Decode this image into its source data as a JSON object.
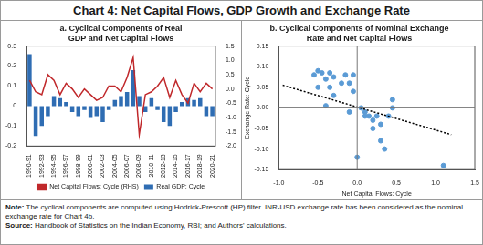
{
  "title": "Chart 4: Net Capital Flows, GDP Growth and Exchange Rate",
  "chart_data": [
    {
      "type": "bar",
      "title": [
        "a. Cyclical Components of Real",
        "GDP and Net Capital Flows"
      ],
      "categories": [
        "1990-91",
        null,
        "1992-93",
        null,
        "1994-95",
        null,
        "1996-97",
        null,
        "1998-99",
        null,
        "2000-01",
        null,
        "2002-03",
        null,
        "2004-05",
        null,
        "2006-07",
        null,
        "2008-09",
        null,
        "2010-11",
        null,
        "2012-13",
        null,
        "2014-15",
        null,
        "2016-17",
        null,
        "2018-19",
        null,
        "2020-21"
      ],
      "series": [
        {
          "name": "Real GDP: Cycle",
          "type": "bar",
          "color": "#2f6db3",
          "values": [
            0.26,
            -0.15,
            -0.1,
            -0.05,
            0.05,
            0.04,
            0.02,
            -0.03,
            -0.05,
            -0.02,
            -0.06,
            -0.05,
            -0.08,
            -0.02,
            0.03,
            0.05,
            0.07,
            0.18,
            0.05,
            -0.03,
            0.04,
            -0.02,
            -0.08,
            -0.1,
            -0.03,
            0.02,
            0.04,
            0.03,
            0.04,
            -0.05,
            -0.05
          ]
        },
        {
          "name": "Net Capital Flows: Cycle (RHS)",
          "type": "line",
          "axis": "y2",
          "color": "#c0282b",
          "values": [
            0.3,
            -0.1,
            -0.2,
            0.5,
            0.3,
            -0.2,
            0.2,
            0.0,
            -0.3,
            0.0,
            -0.2,
            -0.4,
            -0.3,
            0.1,
            0.1,
            -0.1,
            0.4,
            1.1,
            -1.6,
            -0.2,
            -0.1,
            0.1,
            0.4,
            -0.3,
            0.3,
            -0.2,
            -0.5,
            0.2,
            -0.1,
            0.2,
            0.0
          ]
        }
      ],
      "ylim": [
        -0.2,
        0.3
      ],
      "yticks": [
        -0.2,
        -0.1,
        0,
        0.1,
        0.2,
        0.3
      ],
      "y2lim": [
        -2.0,
        1.5
      ],
      "y2ticks": [
        {
          "value": -2.0,
          "label": "-2.0"
        },
        {
          "value": -1.5,
          "label": "-1.5"
        },
        {
          "value": -1.0,
          "label": "-1.0"
        },
        {
          "value": -0.5,
          "label": "-0.5"
        },
        {
          "value": 0,
          "label": "0.0"
        },
        {
          "value": 0.5,
          "label": "0.5"
        },
        {
          "value": 1.0,
          "label": "1.0"
        },
        {
          "value": 1.5,
          "label": "1.5"
        }
      ],
      "grid": false,
      "legend": "bottom"
    },
    {
      "type": "scatter",
      "title": [
        "b. Cyclical Components of Nominal Exchange",
        "Rate and Net Capital Flows"
      ],
      "x_label": "Net Capital Flows: Cycle",
      "y_label": "Exchange Rate: Cycle",
      "color": "#5b9bd5",
      "x": [
        -0.55,
        -0.5,
        -0.45,
        -0.4,
        -0.35,
        -0.3,
        -0.3,
        -0.35,
        -0.2,
        -0.15,
        -0.05,
        -0.1,
        -0.05,
        -0.4,
        -0.1,
        0.0,
        0.05,
        0.1,
        0.15,
        0.2,
        0.25,
        0.3,
        0.35,
        0.3,
        0.4,
        0.45,
        0.45,
        0.2,
        1.1,
        -0.5,
        0.1
      ],
      "values": [
        0.08,
        0.09,
        0.085,
        0.07,
        0.085,
        0.075,
        0.03,
        0.05,
        0.06,
        0.08,
        0.08,
        0.06,
        0.04,
        0.005,
        -0.01,
        -0.12,
        0.0,
        -0.02,
        -0.02,
        -0.03,
        -0.02,
        -0.04,
        -0.1,
        -0.08,
        -0.02,
        0.0,
        0.02,
        -0.05,
        -0.14,
        0.05,
        -0.01
      ],
      "trend_line": {
        "x": [
          -0.95,
          1.2
        ],
        "values": [
          0.055,
          -0.065
        ],
        "color": "#000000",
        "line_style": "dotted"
      },
      "xlim": [
        -1.0,
        1.5
      ],
      "xticks": [
        {
          "value": -1.0,
          "label": "-1.0"
        },
        {
          "value": -0.5,
          "label": "-0.5"
        },
        {
          "value": 0,
          "label": "0.0"
        },
        {
          "value": 0.5,
          "label": "0.5"
        },
        {
          "value": 1.0,
          "label": "1.0"
        },
        {
          "value": 1.5,
          "label": "1.5"
        }
      ],
      "ylim": [
        -0.15,
        0.15
      ],
      "yticks": [
        -0.15,
        {
          "value": -0.1,
          "label": "-0.10"
        },
        -0.05,
        {
          "value": 0,
          "label": "0.00"
        },
        0.05,
        {
          "value": 0.1,
          "label": "0.10"
        },
        0.15
      ],
      "grid": false
    }
  ],
  "note_label": "Note:",
  "note": "The cyclical components are computed using Hodrick-Prescott (HP) filter. INR-USD exchange rate has been considered as the nominal exchange rate for Chart 4b.",
  "source_label": "Source:",
  "source": "Handbook of Statistics on the Indian Economy, RBI; and Authors' calculations."
}
